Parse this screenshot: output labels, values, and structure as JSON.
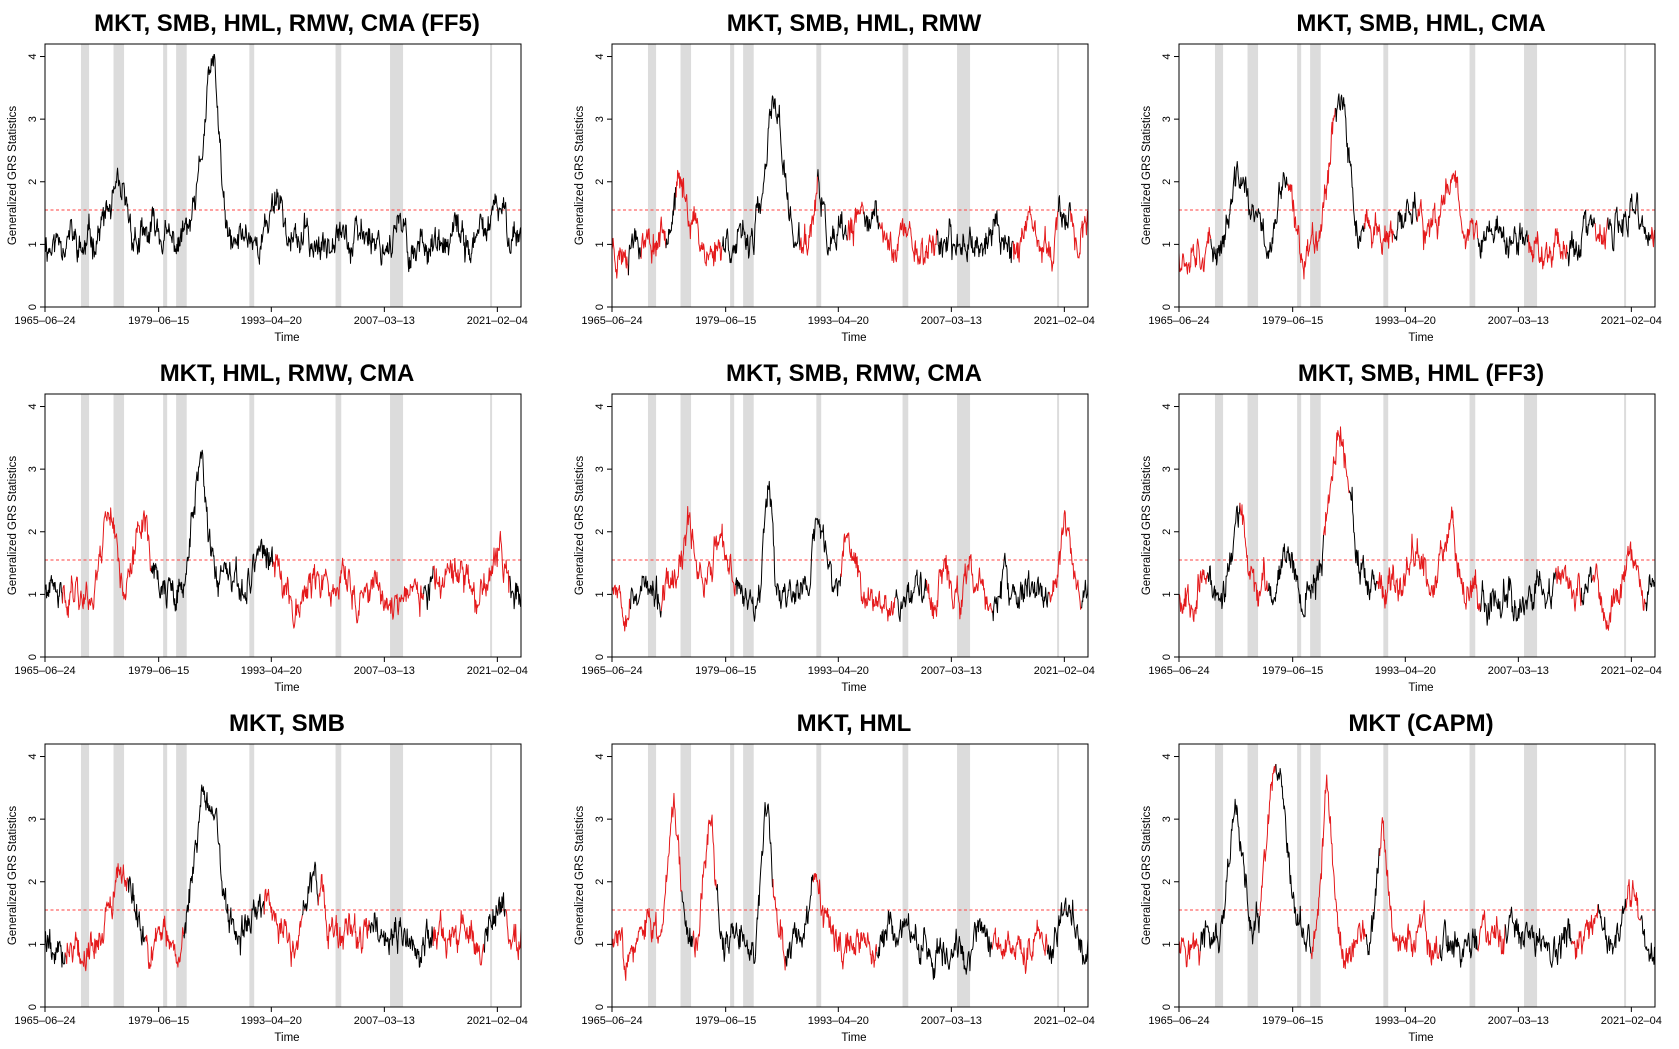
{
  "figure": {
    "ylabel": "Generalized GRS Statistics",
    "xlabel": "Time",
    "x_tick_labels": [
      "1965–06–24",
      "1979–06–15",
      "1993–04–20",
      "2007–03–13",
      "2021–02–04"
    ],
    "y_tick_labels": [
      "0",
      "1",
      "2",
      "3",
      "4"
    ]
  },
  "colors": {
    "black_series": "#000000",
    "red_series": "#e41a1c",
    "threshold_line": "#ff4040",
    "zero_line": "#2222dd",
    "shade": "#dcdcdc"
  },
  "chart_data": [
    {
      "type": "line",
      "title": "MKT, SMB, HML, RMW, CMA (FF5)",
      "xlabel": "Time",
      "ylabel": "Generalized GRS Statistics",
      "x_range": [
        "1965-06-24",
        "2023-12-29"
      ],
      "ylim": [
        0,
        4.2
      ],
      "threshold": 1.55,
      "zero_line": 0,
      "recession_bands": [
        [
          1969.9,
          1970.9
        ],
        [
          1973.9,
          1975.2
        ],
        [
          1980.0,
          1980.5
        ],
        [
          1981.6,
          1982.9
        ],
        [
          1990.6,
          1991.2
        ],
        [
          2001.2,
          2001.9
        ],
        [
          2007.9,
          2009.5
        ],
        [
          2020.2,
          2020.4
        ]
      ],
      "seed": 11,
      "peaks": [
        [
          1974.0,
          0.75,
          1.6
        ],
        [
          1985.5,
          2.0,
          1.4
        ],
        [
          1986.4,
          1.2,
          0.9
        ],
        [
          1994.0,
          0.6,
          1.2
        ],
        [
          2001.5,
          0.4,
          1.0
        ],
        [
          2021.5,
          0.5,
          1.0
        ]
      ],
      "red_fraction": 0.0
    },
    {
      "type": "line",
      "title": "MKT, SMB, HML, RMW",
      "xlabel": "Time",
      "ylabel": "Generalized GRS Statistics",
      "x_range": [
        "1965-06-24",
        "2023-12-29"
      ],
      "ylim": [
        0,
        4.2
      ],
      "threshold": 1.55,
      "zero_line": 0,
      "recession_bands": [
        [
          1969.9,
          1970.9
        ],
        [
          1973.9,
          1975.2
        ],
        [
          1980.0,
          1980.5
        ],
        [
          1981.6,
          1982.9
        ],
        [
          1990.6,
          1991.2
        ],
        [
          2001.2,
          2001.9
        ],
        [
          2007.9,
          2009.5
        ],
        [
          2020.2,
          2020.4
        ]
      ],
      "seed": 23,
      "peaks": [
        [
          1974.0,
          0.9,
          1.4
        ],
        [
          1985.5,
          2.2,
          1.3
        ],
        [
          1991.0,
          0.7,
          0.9
        ],
        [
          1996.5,
          0.6,
          1.0
        ],
        [
          2021.5,
          0.6,
          1.0
        ]
      ],
      "red_fraction": 0.5
    },
    {
      "type": "line",
      "title": "MKT, SMB, HML, CMA",
      "xlabel": "Time",
      "ylabel": "Generalized GRS Statistics",
      "x_range": [
        "1965-06-24",
        "2023-12-29"
      ],
      "ylim": [
        0,
        4.2
      ],
      "threshold": 1.55,
      "zero_line": 0,
      "recession_bands": [
        [
          1969.9,
          1970.9
        ],
        [
          1973.9,
          1975.2
        ],
        [
          1980.0,
          1980.5
        ],
        [
          1981.6,
          1982.9
        ],
        [
          1990.6,
          1991.2
        ],
        [
          2001.2,
          2001.9
        ],
        [
          2007.9,
          2009.5
        ],
        [
          2020.2,
          2020.4
        ]
      ],
      "seed": 37,
      "peaks": [
        [
          1973.0,
          1.1,
          1.2
        ],
        [
          1978.5,
          0.9,
          1.0
        ],
        [
          1985.0,
          2.4,
          1.6
        ],
        [
          1994.5,
          0.8,
          1.2
        ],
        [
          1999.0,
          1.3,
          1.2
        ],
        [
          2021.5,
          0.6,
          1.0
        ]
      ],
      "red_fraction": 0.5
    },
    {
      "type": "line",
      "title": "MKT, HML, RMW, CMA",
      "xlabel": "Time",
      "ylabel": "Generalized GRS Statistics",
      "x_range": [
        "1965-06-24",
        "2023-12-29"
      ],
      "ylim": [
        0,
        4.2
      ],
      "threshold": 1.55,
      "zero_line": 0,
      "recession_bands": [
        [
          1969.9,
          1970.9
        ],
        [
          1973.9,
          1975.2
        ],
        [
          1980.0,
          1980.5
        ],
        [
          1981.6,
          1982.9
        ],
        [
          1990.6,
          1991.2
        ],
        [
          2001.2,
          2001.9
        ],
        [
          2007.9,
          2009.5
        ],
        [
          2020.2,
          2020.4
        ]
      ],
      "seed": 41,
      "peaks": [
        [
          1973.5,
          1.3,
          1.2
        ],
        [
          1977.7,
          1.4,
          1.1
        ],
        [
          1984.5,
          1.9,
          1.2
        ],
        [
          1992.5,
          0.8,
          1.5
        ],
        [
          2021.5,
          0.6,
          1.0
        ]
      ],
      "red_fraction": 0.5
    },
    {
      "type": "line",
      "title": "MKT, SMB, RMW, CMA",
      "xlabel": "Time",
      "ylabel": "Generalized GRS Statistics",
      "x_range": [
        "1965-06-24",
        "2023-12-29"
      ],
      "ylim": [
        0,
        4.2
      ],
      "threshold": 1.55,
      "zero_line": 0,
      "recession_bands": [
        [
          1969.9,
          1970.9
        ],
        [
          1973.9,
          1975.2
        ],
        [
          1980.0,
          1980.5
        ],
        [
          1981.6,
          1982.9
        ],
        [
          1990.6,
          1991.2
        ],
        [
          2001.2,
          2001.9
        ],
        [
          2007.9,
          2009.5
        ],
        [
          2020.2,
          2020.4
        ]
      ],
      "seed": 53,
      "peaks": [
        [
          1975.0,
          1.1,
          1.0
        ],
        [
          1978.5,
          0.8,
          1.0
        ],
        [
          1984.8,
          1.9,
          0.7
        ],
        [
          1990.8,
          1.0,
          1.0
        ],
        [
          1994.5,
          0.6,
          1.2
        ],
        [
          2021.5,
          0.7,
          1.0
        ]
      ],
      "red_fraction": 0.5
    },
    {
      "type": "line",
      "title": "MKT, SMB, HML (FF3)",
      "xlabel": "Time",
      "ylabel": "Generalized GRS Statistics",
      "x_range": [
        "1965-06-24",
        "2023-12-29"
      ],
      "ylim": [
        0,
        4.2
      ],
      "threshold": 1.55,
      "zero_line": 0,
      "recession_bands": [
        [
          1969.9,
          1970.9
        ],
        [
          1973.9,
          1975.2
        ],
        [
          1980.0,
          1980.5
        ],
        [
          1981.6,
          1982.9
        ],
        [
          1990.6,
          1991.2
        ],
        [
          2001.2,
          2001.9
        ],
        [
          2007.9,
          2009.5
        ],
        [
          2020.2,
          2020.4
        ]
      ],
      "seed": 67,
      "peaks": [
        [
          1973.0,
          1.1,
          1.2
        ],
        [
          1978.5,
          0.9,
          1.0
        ],
        [
          1985.3,
          2.6,
          1.7
        ],
        [
          1994.5,
          0.8,
          1.2
        ],
        [
          1999.0,
          1.1,
          1.2
        ],
        [
          2021.5,
          0.6,
          1.0
        ]
      ],
      "red_fraction": 0.5
    },
    {
      "type": "line",
      "title": "MKT, SMB",
      "xlabel": "Time",
      "ylabel": "Generalized GRS Statistics",
      "x_range": [
        "1965-06-24",
        "2023-12-29"
      ],
      "ylim": [
        0,
        4.2
      ],
      "threshold": 1.55,
      "zero_line": 0,
      "recession_bands": [
        [
          1969.9,
          1970.9
        ],
        [
          1973.9,
          1975.2
        ],
        [
          1980.0,
          1980.5
        ],
        [
          1981.6,
          1982.9
        ],
        [
          1990.6,
          1991.2
        ],
        [
          2001.2,
          2001.9
        ],
        [
          2007.9,
          2009.5
        ],
        [
          2020.2,
          2020.4
        ]
      ],
      "seed": 79,
      "peaks": [
        [
          1975.0,
          1.0,
          1.6
        ],
        [
          1985.3,
          2.5,
          1.8
        ],
        [
          1992.5,
          0.8,
          1.5
        ],
        [
          1998.5,
          1.0,
          1.5
        ],
        [
          2021.5,
          0.6,
          1.0
        ]
      ],
      "red_fraction": 0.5
    },
    {
      "type": "line",
      "title": "MKT, HML",
      "xlabel": "Time",
      "ylabel": "Generalized GRS Statistics",
      "x_range": [
        "1965-06-24",
        "2023-12-29"
      ],
      "ylim": [
        0,
        4.2
      ],
      "threshold": 1.55,
      "zero_line": 0,
      "recession_bands": [
        [
          1969.9,
          1970.9
        ],
        [
          1973.9,
          1975.2
        ],
        [
          1980.0,
          1980.5
        ],
        [
          1981.6,
          1982.9
        ],
        [
          1990.6,
          1991.2
        ],
        [
          2001.2,
          2001.9
        ],
        [
          2007.9,
          2009.5
        ],
        [
          2020.2,
          2020.4
        ]
      ],
      "seed": 83,
      "peaks": [
        [
          1973.0,
          2.2,
          1.0
        ],
        [
          1977.5,
          1.7,
          1.1
        ],
        [
          1984.5,
          1.6,
          1.0
        ],
        [
          1990.5,
          0.8,
          1.0
        ],
        [
          2021.5,
          0.7,
          1.0
        ]
      ],
      "red_fraction": 0.5
    },
    {
      "type": "line",
      "title": "MKT (CAPM)",
      "xlabel": "Time",
      "ylabel": "Generalized GRS Statistics",
      "x_range": [
        "1965-06-24",
        "2023-12-29"
      ],
      "ylim": [
        0,
        4.2
      ],
      "threshold": 1.55,
      "zero_line": 0,
      "recession_bands": [
        [
          1969.9,
          1970.9
        ],
        [
          1973.9,
          1975.2
        ],
        [
          1980.0,
          1980.5
        ],
        [
          1981.6,
          1982.9
        ],
        [
          1990.6,
          1991.2
        ],
        [
          2001.2,
          2001.9
        ],
        [
          2007.9,
          2009.5
        ],
        [
          2020.2,
          2020.4
        ]
      ],
      "seed": 97,
      "peaks": [
        [
          1972.5,
          2.0,
          1.2
        ],
        [
          1977.5,
          2.4,
          1.6
        ],
        [
          1983.7,
          2.4,
          0.9
        ],
        [
          1990.4,
          1.7,
          0.7
        ],
        [
          2021.5,
          0.7,
          1.0
        ]
      ],
      "red_fraction": 0.5
    }
  ]
}
